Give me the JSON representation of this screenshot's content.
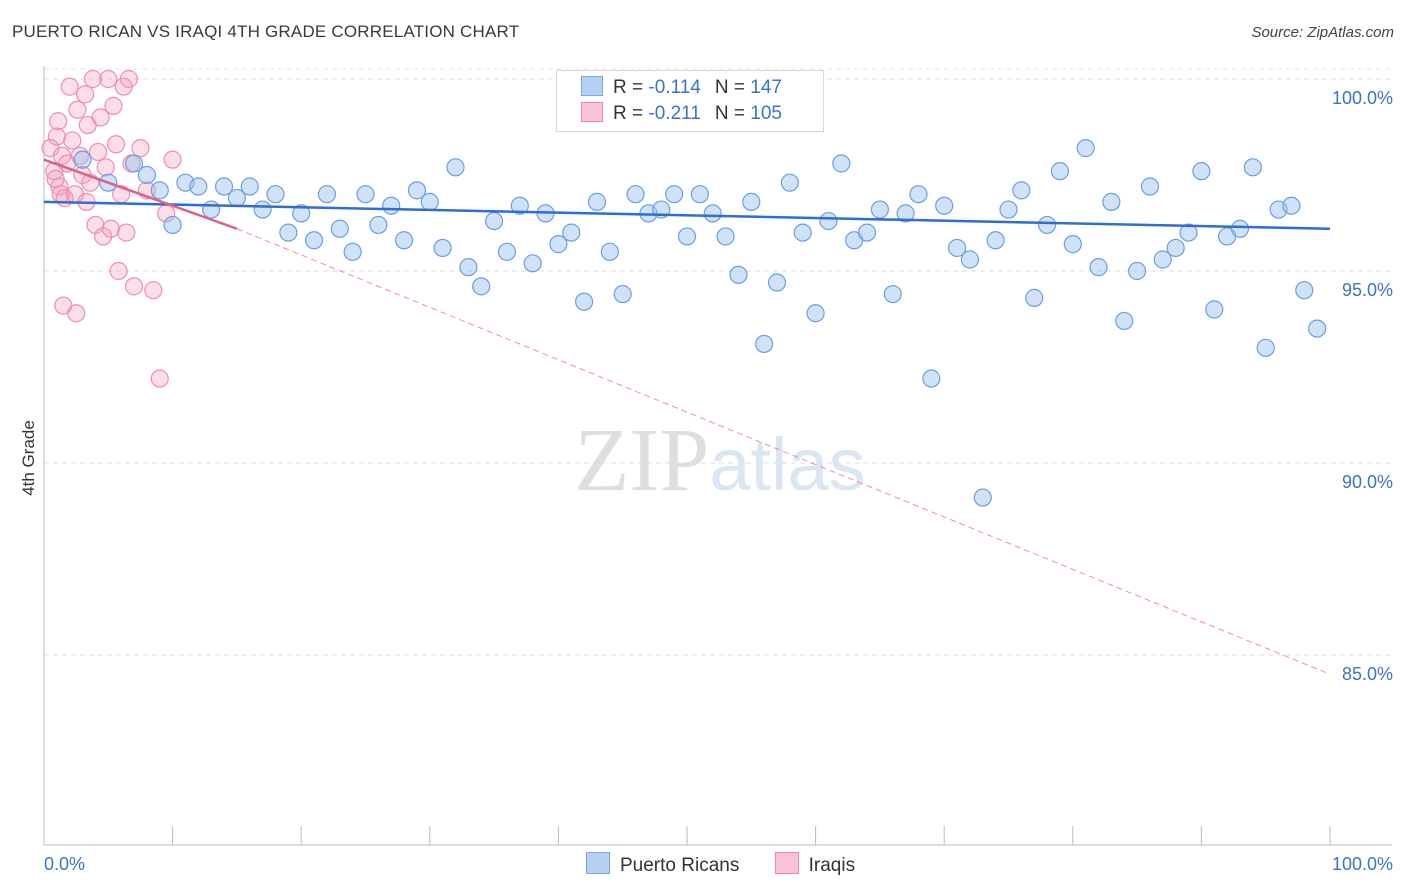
{
  "title": "PUERTO RICAN VS IRAQI 4TH GRADE CORRELATION CHART",
  "source": "Source: ZipAtlas.com",
  "legend": {
    "rows": [
      {
        "r_label": "R =",
        "r_value": "-0.114",
        "n_label": "N =",
        "n_value": "147"
      },
      {
        "r_label": "R =",
        "r_value": "-0.211",
        "n_label": "N =",
        "n_value": "105"
      }
    ]
  },
  "bottom_legend": [
    "Puerto Ricans",
    "Iraqis"
  ],
  "watermark": "ZIPatlas",
  "chart_data": {
    "type": "scatter",
    "title": "PUERTO RICAN VS IRAQI 4TH GRADE CORRELATION CHART",
    "xlabel": "",
    "ylabel": "4th Grade",
    "xlim": [
      0,
      100
    ],
    "ylim": [
      80.5,
      100.8
    ],
    "x_tick_labels": [
      "0.0%",
      "100.0%"
    ],
    "y_ticks": [
      100,
      95,
      90,
      85
    ],
    "y_tick_labels": [
      "100.0%",
      "95.0%",
      "90.0%",
      "85.0%"
    ],
    "grid": true,
    "colors": {
      "blue": "#6a9fe2",
      "blue_line": "#2d6fd1",
      "pink": "#f08db0",
      "pink_line": "#e0608c",
      "axis_label": "#3a74c8"
    },
    "series": [
      {
        "name": "Puerto Ricans",
        "r": -0.114,
        "n": 147,
        "trend": {
          "x": [
            0,
            100
          ],
          "y": [
            96.8,
            96.1
          ]
        },
        "points": [
          [
            3,
            97.9
          ],
          [
            5,
            97.3
          ],
          [
            7,
            97.8
          ],
          [
            8,
            97.5
          ],
          [
            9,
            97.1
          ],
          [
            10,
            96.2
          ],
          [
            11,
            97.3
          ],
          [
            12,
            97.2
          ],
          [
            13,
            96.6
          ],
          [
            14,
            97.2
          ],
          [
            15,
            96.9
          ],
          [
            16,
            97.2
          ],
          [
            17,
            96.6
          ],
          [
            18,
            97.0
          ],
          [
            19,
            96.0
          ],
          [
            20,
            96.5
          ],
          [
            21,
            95.8
          ],
          [
            22,
            97.0
          ],
          [
            23,
            96.1
          ],
          [
            24,
            95.5
          ],
          [
            25,
            97.0
          ],
          [
            26,
            96.2
          ],
          [
            27,
            96.7
          ],
          [
            28,
            95.8
          ],
          [
            29,
            97.1
          ],
          [
            30,
            96.8
          ],
          [
            31,
            95.6
          ],
          [
            32,
            97.7
          ],
          [
            33,
            95.1
          ],
          [
            34,
            94.6
          ],
          [
            35,
            96.3
          ],
          [
            36,
            95.5
          ],
          [
            37,
            96.7
          ],
          [
            38,
            95.2
          ],
          [
            39,
            96.5
          ],
          [
            40,
            95.7
          ],
          [
            41,
            96.0
          ],
          [
            42,
            94.2
          ],
          [
            43,
            96.8
          ],
          [
            44,
            95.5
          ],
          [
            45,
            94.4
          ],
          [
            46,
            97.0
          ],
          [
            47,
            96.5
          ],
          [
            48,
            96.6
          ],
          [
            49,
            97.0
          ],
          [
            50,
            95.9
          ],
          [
            51,
            97.0
          ],
          [
            52,
            96.5
          ],
          [
            53,
            95.9
          ],
          [
            54,
            94.9
          ],
          [
            55,
            96.8
          ],
          [
            56,
            93.1
          ],
          [
            57,
            94.7
          ],
          [
            58,
            97.3
          ],
          [
            59,
            96.0
          ],
          [
            60,
            93.9
          ],
          [
            61,
            96.3
          ],
          [
            62,
            97.8
          ],
          [
            63,
            95.8
          ],
          [
            64,
            96.0
          ],
          [
            65,
            96.6
          ],
          [
            66,
            94.4
          ],
          [
            67,
            96.5
          ],
          [
            68,
            97.0
          ],
          [
            69,
            92.2
          ],
          [
            70,
            96.7
          ],
          [
            71,
            95.6
          ],
          [
            72,
            95.3
          ],
          [
            73,
            89.1
          ],
          [
            74,
            95.8
          ],
          [
            75,
            96.6
          ],
          [
            76,
            97.1
          ],
          [
            77,
            94.3
          ],
          [
            78,
            96.2
          ],
          [
            79,
            97.6
          ],
          [
            80,
            95.7
          ],
          [
            81,
            98.2
          ],
          [
            82,
            95.1
          ],
          [
            83,
            96.8
          ],
          [
            84,
            93.7
          ],
          [
            85,
            95.0
          ],
          [
            86,
            97.2
          ],
          [
            87,
            95.3
          ],
          [
            88,
            95.6
          ],
          [
            89,
            96.0
          ],
          [
            90,
            97.6
          ],
          [
            91,
            94.0
          ],
          [
            92,
            95.9
          ],
          [
            93,
            96.1
          ],
          [
            94,
            97.7
          ],
          [
            95,
            93.0
          ],
          [
            96,
            96.6
          ],
          [
            97,
            96.7
          ],
          [
            98,
            94.5
          ],
          [
            99,
            93.5
          ]
        ]
      },
      {
        "name": "Iraqis",
        "r": -0.211,
        "n": 105,
        "trend": {
          "x": [
            0,
            15
          ],
          "y": [
            97.9,
            96.1
          ]
        },
        "trend_extension": {
          "x": [
            15,
            100
          ],
          "y": [
            96.1,
            84.5
          ]
        },
        "points": [
          [
            0.5,
            98.2
          ],
          [
            0.8,
            97.6
          ],
          [
            1.0,
            98.5
          ],
          [
            1.2,
            97.2
          ],
          [
            1.4,
            98.0
          ],
          [
            1.6,
            96.9
          ],
          [
            1.8,
            97.8
          ],
          [
            2.0,
            99.8
          ],
          [
            2.2,
            98.4
          ],
          [
            2.4,
            97.0
          ],
          [
            2.6,
            99.2
          ],
          [
            2.8,
            98.0
          ],
          [
            3.0,
            97.5
          ],
          [
            3.2,
            99.6
          ],
          [
            3.4,
            98.8
          ],
          [
            3.6,
            97.3
          ],
          [
            3.8,
            100.0
          ],
          [
            4.0,
            96.2
          ],
          [
            4.2,
            98.1
          ],
          [
            4.4,
            99.0
          ],
          [
            4.6,
            95.9
          ],
          [
            4.8,
            97.7
          ],
          [
            5.0,
            100.0
          ],
          [
            5.2,
            96.1
          ],
          [
            5.4,
            99.3
          ],
          [
            5.6,
            98.3
          ],
          [
            5.8,
            95.0
          ],
          [
            6.0,
            97.0
          ],
          [
            6.2,
            99.8
          ],
          [
            6.4,
            96.0
          ],
          [
            6.6,
            100.0
          ],
          [
            6.8,
            97.8
          ],
          [
            7.0,
            94.6
          ],
          [
            7.5,
            98.2
          ],
          [
            8.0,
            97.1
          ],
          [
            8.5,
            94.5
          ],
          [
            9.0,
            92.2
          ],
          [
            9.5,
            96.5
          ],
          [
            10.0,
            97.9
          ],
          [
            1.5,
            94.1
          ],
          [
            2.5,
            93.9
          ],
          [
            3.3,
            96.8
          ],
          [
            0.9,
            97.4
          ],
          [
            1.1,
            98.9
          ],
          [
            1.3,
            97.0
          ]
        ]
      }
    ]
  }
}
